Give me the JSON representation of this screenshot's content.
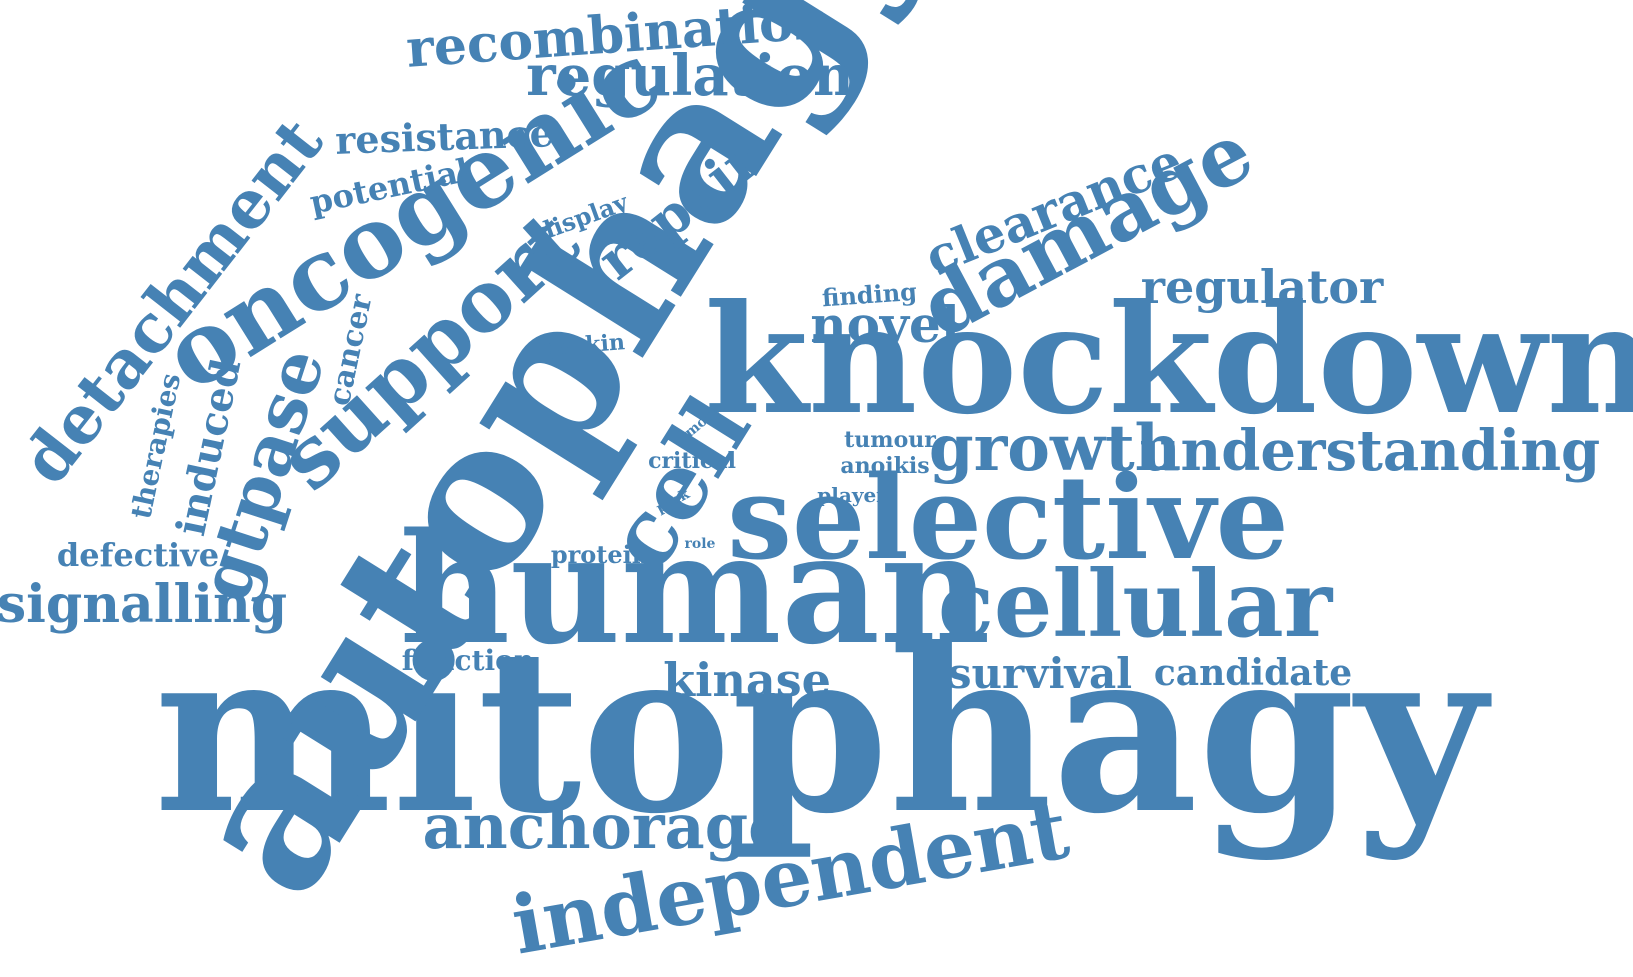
{
  "palette": {
    "word_color": "#4682b4",
    "background": "#ffffff"
  },
  "words": [
    {
      "text": "mitophagy"
    },
    {
      "text": "autophagy"
    },
    {
      "text": "knockdown"
    },
    {
      "text": "human"
    },
    {
      "text": "selective"
    },
    {
      "text": "cellular"
    },
    {
      "text": "oncogenic"
    },
    {
      "text": "support"
    },
    {
      "text": "damage"
    },
    {
      "text": "independent"
    },
    {
      "text": "cell"
    },
    {
      "text": "detachment"
    },
    {
      "text": "anchorage"
    },
    {
      "text": "gtpase"
    },
    {
      "text": "understanding"
    },
    {
      "text": "growth"
    },
    {
      "text": "clearance"
    },
    {
      "text": "regulation"
    },
    {
      "text": "recombination"
    },
    {
      "text": "signalling"
    },
    {
      "text": "repair"
    },
    {
      "text": "regulator"
    },
    {
      "text": "novel"
    },
    {
      "text": "kinase"
    },
    {
      "text": "survival"
    },
    {
      "text": "candidate"
    },
    {
      "text": "resistance"
    },
    {
      "text": "induced"
    },
    {
      "text": "potential"
    },
    {
      "text": "defective"
    },
    {
      "text": "therapies"
    },
    {
      "text": "cancer"
    },
    {
      "text": "function"
    },
    {
      "text": "display"
    },
    {
      "text": "finding"
    },
    {
      "text": "parkin"
    },
    {
      "text": "critical"
    },
    {
      "text": "protein"
    },
    {
      "text": "tumour"
    },
    {
      "text": "anoikis"
    },
    {
      "text": "player"
    },
    {
      "text": "more"
    },
    {
      "text": "pink"
    },
    {
      "text": "role"
    }
  ]
}
